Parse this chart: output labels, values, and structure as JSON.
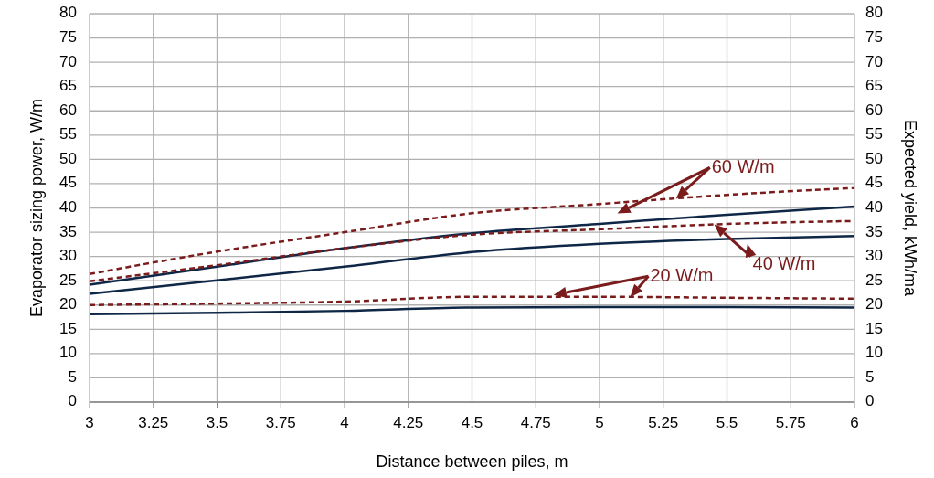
{
  "chart_data": {
    "type": "line",
    "xlabel": "Distance between piles, m",
    "ylabel": "Evaporator sizing power, W/m",
    "y2label": "Expected yield, kWh/ma",
    "x": [
      3,
      3.5,
      4,
      4.5,
      5,
      5.5,
      6
    ],
    "series": [
      {
        "color": "#7b1c1c",
        "line_style": "dashed",
        "values": [
          26.4,
          31.0,
          35.0,
          38.9,
          40.8,
          42.7,
          44.1
        ]
      },
      {
        "color": "#0f2747",
        "line_style": "solid",
        "values": [
          24.2,
          27.9,
          31.7,
          34.8,
          36.7,
          38.6,
          40.3
        ]
      },
      {
        "color": "#7b1c1c",
        "line_style": "dashed",
        "values": [
          24.9,
          28.2,
          31.7,
          34.5,
          35.6,
          36.7,
          37.3
        ]
      },
      {
        "color": "#0f2747",
        "line_style": "solid",
        "values": [
          22.3,
          25.1,
          27.9,
          30.9,
          32.6,
          33.6,
          34.2
        ]
      },
      {
        "color": "#7b1c1c",
        "line_style": "dashed",
        "values": [
          20.0,
          20.3,
          20.7,
          21.7,
          21.7,
          21.5,
          21.3
        ]
      },
      {
        "color": "#0f2747",
        "line_style": "solid",
        "values": [
          18.1,
          18.4,
          18.8,
          19.5,
          19.6,
          19.6,
          19.5
        ]
      }
    ],
    "xlim": [
      3,
      6
    ],
    "xticks": [
      3,
      3.25,
      3.5,
      3.75,
      4,
      4.25,
      4.5,
      4.75,
      5,
      5.25,
      5.5,
      5.75,
      6
    ],
    "ylim": [
      0,
      80
    ],
    "yticks": [
      0,
      5,
      10,
      15,
      20,
      25,
      30,
      35,
      40,
      45,
      50,
      55,
      60,
      65,
      70,
      75,
      80
    ],
    "y2lim": [
      0,
      80
    ],
    "y2ticks": [
      0,
      5,
      10,
      15,
      20,
      25,
      30,
      35,
      40,
      45,
      50,
      55,
      60,
      65,
      70,
      75,
      80
    ],
    "grid": true,
    "annotations": [
      {
        "text": "60 W/m",
        "x": 5.3,
        "y": 41.9
      },
      {
        "text": "40 W/m",
        "x": 5.45,
        "y": 36.6
      },
      {
        "text": "20 W/m",
        "x": 5.12,
        "y": 21.6
      }
    ]
  }
}
